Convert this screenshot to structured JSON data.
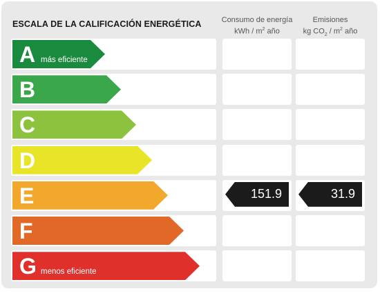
{
  "header": {
    "title": "ESCALA DE LA CALIFICACIÓN ENERGÉTICA",
    "col1": {
      "line1": "Consumo de energía",
      "line2_pre": "kWh / m",
      "line2_sup": "2",
      "line2_post": " año"
    },
    "col2": {
      "line1": "Emisiones",
      "line2_pre": "kg CO",
      "line2_sub": "2",
      "line2_mid": " / m",
      "line2_sup": "2",
      "line2_post": " año"
    }
  },
  "ratings": [
    {
      "letter": "A",
      "sublabel": "más eficiente",
      "color": "#1a8a3e",
      "consumo": "",
      "emisiones": ""
    },
    {
      "letter": "B",
      "sublabel": "",
      "color": "#3aa84a",
      "consumo": "",
      "emisiones": ""
    },
    {
      "letter": "C",
      "sublabel": "",
      "color": "#8dc23f",
      "consumo": "",
      "emisiones": ""
    },
    {
      "letter": "D",
      "sublabel": "",
      "color": "#e8e528",
      "consumo": "",
      "emisiones": ""
    },
    {
      "letter": "E",
      "sublabel": "",
      "color": "#f2a72d",
      "consumo": "151.9",
      "emisiones": "31.9"
    },
    {
      "letter": "F",
      "sublabel": "",
      "color": "#e16826",
      "consumo": "",
      "emisiones": ""
    },
    {
      "letter": "G",
      "sublabel": "menos eficiente",
      "color": "#e0302b",
      "consumo": "",
      "emisiones": ""
    }
  ]
}
